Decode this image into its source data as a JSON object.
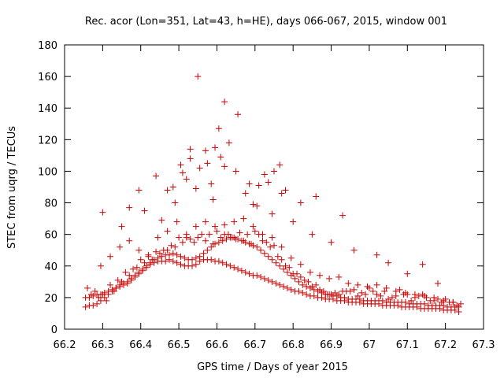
{
  "chart_data": {
    "type": "scatter",
    "title": "Rec. acor (Lon=351, Lat=43, h=HE), days 066-067, 2015, window 001",
    "xlabel": "GPS time / Days of year 2015",
    "ylabel": "STEC from uqrg / TECUs",
    "xlim": [
      66.2,
      67.3
    ],
    "ylim": [
      0,
      180
    ],
    "x_ticks": [
      66.2,
      66.3,
      66.4,
      66.5,
      66.6,
      66.7,
      66.8,
      66.9,
      67.0,
      67.1,
      67.2,
      67.3
    ],
    "x_tick_labels": [
      "66.2",
      "66.3",
      "66.4",
      "66.5",
      "66.6",
      "66.7",
      "66.8",
      "66.9",
      "67",
      "67.1",
      "67.2",
      "67.3"
    ],
    "y_ticks": [
      0,
      20,
      40,
      60,
      80,
      100,
      120,
      140,
      160,
      180
    ],
    "y_tick_labels": [
      "0",
      "20",
      "40",
      "60",
      "80",
      "100",
      "120",
      "140",
      "160",
      "180"
    ],
    "grid": false,
    "marker": "+",
    "color": "#cc0000",
    "series": [
      {
        "name": "STEC",
        "x": [
          66.255,
          66.265,
          66.275,
          66.285,
          66.295,
          66.305,
          66.315,
          66.325,
          66.335,
          66.345,
          66.355,
          66.365,
          66.375,
          66.385,
          66.395,
          66.405,
          66.415,
          66.425,
          66.435,
          66.445,
          66.455,
          66.465,
          66.475,
          66.485,
          66.495,
          66.505,
          66.515,
          66.525,
          66.535,
          66.545,
          66.555,
          66.565,
          66.575,
          66.585,
          66.595,
          66.605,
          66.615,
          66.625,
          66.635,
          66.645,
          66.655,
          66.665,
          66.675,
          66.685,
          66.695,
          66.705,
          66.715,
          66.725,
          66.735,
          66.745,
          66.755,
          66.765,
          66.775,
          66.785,
          66.795,
          66.805,
          66.815,
          66.825,
          66.835,
          66.845,
          66.855,
          66.865,
          66.875,
          66.885,
          66.895,
          66.905,
          66.915,
          66.925,
          66.935,
          66.945,
          66.955,
          66.965,
          66.975,
          66.985,
          66.995,
          67.005,
          67.015,
          67.025,
          67.035,
          67.045,
          67.055,
          67.065,
          67.075,
          67.085,
          67.095,
          67.105,
          67.115,
          67.125,
          67.135,
          67.145,
          67.155,
          67.165,
          67.175,
          67.185,
          67.195,
          67.205,
          67.215,
          67.225,
          67.235,
          66.255,
          66.265,
          66.275,
          66.285,
          66.295,
          66.305,
          66.315,
          66.325,
          66.335,
          66.345,
          66.355,
          66.365,
          66.375,
          66.385,
          66.395,
          66.405,
          66.415,
          66.425,
          66.435,
          66.445,
          66.455,
          66.465,
          66.475,
          66.485,
          66.495,
          66.505,
          66.515,
          66.525,
          66.535,
          66.545,
          66.555,
          66.565,
          66.575,
          66.585,
          66.595,
          66.605,
          66.615,
          66.625,
          66.635,
          66.645,
          66.655,
          66.665,
          66.675,
          66.685,
          66.695,
          66.705,
          66.715,
          66.725,
          66.735,
          66.745,
          66.755,
          66.765,
          66.775,
          66.785,
          66.795,
          66.805,
          66.815,
          66.825,
          66.835,
          66.845,
          66.855,
          66.865,
          66.875,
          66.885,
          66.895,
          66.905,
          66.915,
          66.925,
          66.935,
          66.945,
          66.955,
          66.965,
          66.975,
          66.985,
          66.995,
          67.005,
          67.015,
          67.025,
          67.035,
          67.045,
          67.055,
          67.065,
          67.075,
          67.085,
          67.095,
          67.105,
          67.115,
          67.125,
          67.135,
          67.145,
          67.155,
          67.165,
          67.175,
          67.185,
          67.195,
          67.205,
          67.215,
          67.225,
          67.235,
          66.26,
          66.28,
          66.3,
          66.32,
          66.34,
          66.36,
          66.38,
          66.4,
          66.42,
          66.44,
          66.46,
          66.48,
          66.5,
          66.52,
          66.54,
          66.56,
          66.58,
          66.6,
          66.62,
          66.64,
          66.66,
          66.68,
          66.7,
          66.72,
          66.74,
          66.76,
          66.78,
          66.8,
          66.82,
          66.84,
          66.86,
          66.88,
          66.9,
          66.92,
          66.94,
          66.96,
          66.98,
          67.0,
          67.02,
          67.04,
          67.06,
          67.08,
          67.1,
          67.12,
          67.14,
          67.16,
          67.18,
          67.2,
          67.22,
          67.24,
          66.27,
          66.29,
          66.31,
          66.33,
          66.35,
          66.37,
          66.39,
          66.41,
          66.43,
          66.45,
          66.47,
          66.49,
          66.51,
          66.53,
          66.55,
          66.57,
          66.59,
          66.61,
          66.63,
          66.65,
          66.67,
          66.69,
          66.71,
          66.73,
          66.75,
          66.77,
          66.79,
          66.81,
          66.83,
          66.85,
          66.87,
          66.89,
          66.91,
          66.93,
          66.95,
          66.97,
          66.99,
          67.01,
          67.03,
          67.05,
          67.07,
          67.09,
          67.11,
          67.13,
          67.15,
          67.17,
          67.19,
          67.21,
          67.23,
          66.295,
          66.32,
          66.345,
          66.37,
          66.395,
          66.42,
          66.445,
          66.47,
          66.495,
          66.52,
          66.545,
          66.57,
          66.595,
          66.62,
          66.645,
          66.67,
          66.695,
          66.72,
          66.745,
          66.77,
          66.795,
          66.82,
          66.845,
          66.87,
          66.895,
          66.92,
          66.945,
          66.97,
          66.995,
          67.02,
          67.045,
          67.07,
          67.095,
          67.12,
          67.145,
          67.17,
          67.195,
          67.22,
          66.3,
          66.35,
          66.395,
          66.44,
          66.47,
          66.49,
          66.505,
          66.52,
          66.53,
          66.545,
          66.555,
          66.57,
          66.585,
          66.595,
          66.61,
          66.62,
          66.632,
          66.65,
          66.675,
          66.695,
          66.71,
          66.735,
          66.75,
          66.765,
          66.78,
          66.82,
          66.86,
          66.93,
          67.02,
          67.14,
          66.37,
          66.41,
          66.455,
          66.485,
          66.51,
          66.53,
          66.55,
          66.575,
          66.59,
          66.605,
          66.62,
          66.655,
          66.685,
          66.705,
          66.725,
          66.745,
          66.77,
          66.8,
          66.85,
          66.9,
          66.96,
          67.05,
          67.1,
          67.18
        ],
        "y": [
          14,
          15,
          15,
          16,
          18,
          20,
          22,
          24,
          26,
          27,
          28,
          29,
          31,
          33,
          35,
          37,
          39,
          41,
          42,
          43,
          43,
          43,
          44,
          43,
          42,
          41,
          40,
          40,
          40,
          41,
          43,
          44,
          44,
          44,
          43,
          43,
          42,
          41,
          40,
          39,
          38,
          37,
          36,
          35,
          34,
          34,
          33,
          32,
          31,
          30,
          29,
          28,
          27,
          26,
          25,
          24,
          24,
          23,
          22,
          21,
          21,
          20,
          20,
          19,
          19,
          19,
          18,
          18,
          18,
          17,
          17,
          17,
          17,
          16,
          16,
          16,
          16,
          16,
          15,
          15,
          15,
          15,
          15,
          14,
          14,
          14,
          14,
          14,
          13,
          13,
          13,
          13,
          13,
          13,
          12,
          12,
          12,
          12,
          11,
          20,
          20,
          21,
          22,
          22,
          23,
          24,
          25,
          26,
          28,
          29,
          30,
          32,
          34,
          36,
          38,
          40,
          42,
          44,
          45,
          46,
          47,
          47,
          48,
          47,
          46,
          45,
          44,
          44,
          45,
          46,
          48,
          50,
          52,
          54,
          55,
          56,
          57,
          58,
          58,
          57,
          56,
          55,
          54,
          53,
          52,
          50,
          48,
          46,
          44,
          42,
          40,
          38,
          36,
          34,
          32,
          30,
          28,
          27,
          26,
          25,
          24,
          23,
          22,
          22,
          21,
          21,
          20,
          20,
          19,
          19,
          19,
          19,
          18,
          18,
          18,
          18,
          18,
          18,
          17,
          17,
          17,
          17,
          17,
          17,
          16,
          16,
          16,
          16,
          16,
          15,
          15,
          15,
          15,
          15,
          14,
          14,
          14,
          14,
          26,
          24,
          22,
          28,
          31,
          36,
          38,
          44,
          46,
          49,
          50,
          53,
          58,
          58,
          55,
          60,
          60,
          62,
          60,
          58,
          61,
          60,
          62,
          56,
          52,
          46,
          40,
          35,
          33,
          30,
          28,
          24,
          22,
          22,
          24,
          25,
          23,
          26,
          22,
          24,
          20,
          25,
          22,
          20,
          22,
          18,
          19,
          19,
          17,
          16,
          22,
          20,
          18,
          24,
          30,
          34,
          39,
          42,
          44,
          48,
          50,
          52,
          55,
          57,
          58,
          56,
          54,
          58,
          60,
          57,
          56,
          54,
          60,
          55,
          53,
          44,
          39,
          35,
          31,
          27,
          25,
          22,
          23,
          24,
          24,
          21,
          22,
          24,
          21,
          19,
          21,
          22,
          18,
          21,
          20,
          18,
          17,
          17,
          15,
          40,
          46,
          52,
          56,
          50,
          47,
          58,
          62,
          68,
          60,
          65,
          68,
          65,
          66,
          68,
          70,
          65,
          60,
          58,
          52,
          45,
          41,
          36,
          34,
          32,
          33,
          29,
          28,
          27,
          28,
          26,
          24,
          23,
          22,
          21,
          20,
          18,
          17,
          74,
          65,
          88,
          97,
          88,
          80,
          104,
          95,
          108,
          89,
          102,
          113,
          92,
          115,
          109,
          103,
          118,
          100,
          86,
          79,
          91,
          93,
          100,
          104,
          88,
          80,
          84,
          72,
          47,
          41,
          77,
          75,
          69,
          90,
          99,
          114,
          160,
          105,
          82,
          127,
          144,
          136,
          92,
          78,
          98,
          73,
          86,
          68,
          60,
          55,
          50,
          42,
          35,
          29
        ]
      }
    ]
  }
}
